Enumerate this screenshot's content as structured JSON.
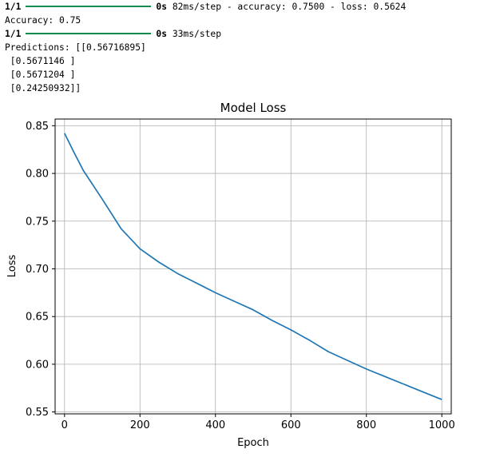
{
  "console": {
    "line1": {
      "step": "1/1",
      "time": "0s",
      "rest": " 82ms/step - accuracy: 0.7500 - loss: 0.5624"
    },
    "accuracy": "Accuracy: 0.75",
    "line3": {
      "step": "1/1",
      "time": "0s",
      "rest": " 33ms/step"
    },
    "predictions": [
      "Predictions: [[0.56716895]",
      " [0.5671146 ]",
      " [0.5671204 ]",
      " [0.24250932]]"
    ]
  },
  "chart_data": {
    "type": "line",
    "title": "Model Loss",
    "xlabel": "Epoch",
    "ylabel": "Loss",
    "xlim": [
      -25,
      1025
    ],
    "ylim": [
      0.548,
      0.857
    ],
    "xticks": [
      0,
      200,
      400,
      600,
      800,
      1000
    ],
    "xtick_labels": [
      "0",
      "200",
      "400",
      "600",
      "800",
      "1000"
    ],
    "yticks": [
      0.55,
      0.6,
      0.65,
      0.7,
      0.75,
      0.8,
      0.85
    ],
    "ytick_labels": [
      "0.55",
      "0.60",
      "0.65",
      "0.70",
      "0.75",
      "0.80",
      "0.85"
    ],
    "grid": true,
    "series": [
      {
        "color": "#1f77b4",
        "x": [
          0,
          25,
          50,
          100,
          150,
          200,
          250,
          300,
          350,
          400,
          450,
          500,
          550,
          600,
          650,
          700,
          750,
          800,
          850,
          900,
          950,
          1000
        ],
        "y": [
          0.842,
          0.822,
          0.803,
          0.773,
          0.742,
          0.721,
          0.707,
          0.695,
          0.685,
          0.675,
          0.666,
          0.657,
          0.646,
          0.636,
          0.625,
          0.613,
          0.604,
          0.595,
          0.587,
          0.579,
          0.571,
          0.563
        ]
      }
    ]
  }
}
